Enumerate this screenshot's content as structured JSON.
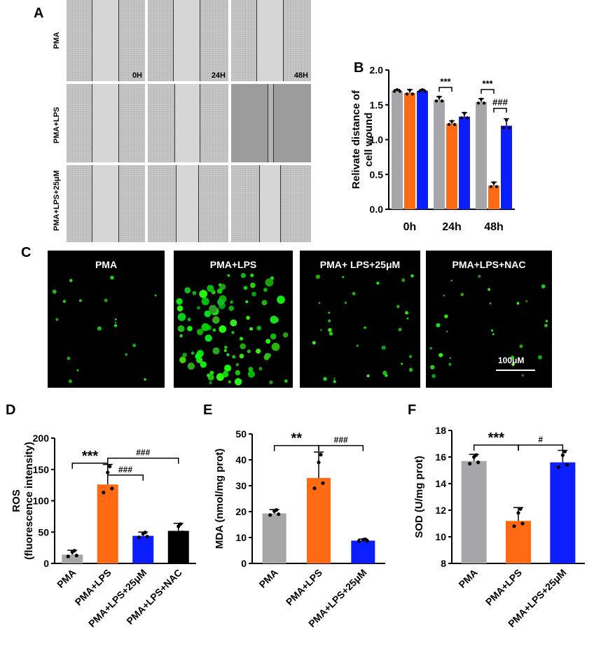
{
  "panels": {
    "A": "A",
    "B": "B",
    "C": "C",
    "D": "D",
    "E": "E",
    "F": "F"
  },
  "panel_a": {
    "rows": [
      "PMA",
      "PMA+LPS",
      "PMA+LPS+25μM"
    ],
    "times": [
      "0H",
      "24H",
      "48H"
    ]
  },
  "panel_c": {
    "labels": [
      "PMA",
      "PMA+LPS",
      "PMA+ LPS+25μM",
      "PMA+LPS+NAC"
    ],
    "scale": "100μM"
  },
  "chart_data": [
    {
      "id": "B",
      "type": "bar",
      "ylabel": "Relivate distance of cell wound",
      "ylim": [
        0,
        2.0
      ],
      "yticks": [
        "0.0",
        "0.5",
        "1.0",
        "1.5",
        "2.0"
      ],
      "categories": [
        "0h",
        "24h",
        "48h"
      ],
      "series": [
        {
          "values": [
            1.7,
            1.57,
            1.54
          ],
          "errors": [
            0.02,
            0.05,
            0.05
          ],
          "color": "#a6a6aa"
        },
        {
          "values": [
            1.67,
            1.23,
            0.34
          ],
          "errors": [
            0.05,
            0.04,
            0.05
          ],
          "color": "#ff6a13"
        },
        {
          "values": [
            1.7,
            1.33,
            1.2
          ],
          "errors": [
            0.02,
            0.06,
            0.1
          ],
          "color": "#0a1eff"
        }
      ],
      "annotations": [
        "***",
        "***",
        "###"
      ]
    },
    {
      "id": "D",
      "type": "bar",
      "ylabel": "ROS (fluorescence intensity)",
      "ylim": [
        0,
        200
      ],
      "yticks": [
        "0",
        "50",
        "100",
        "150",
        "200"
      ],
      "categories": [
        "PMA",
        "PMA+LPS",
        "PMA+LPS+25μM",
        "PMA+LPS+NAC"
      ],
      "values": [
        14,
        126,
        44,
        52
      ],
      "errors": [
        7,
        32,
        6,
        12
      ],
      "colors": [
        "#a6a6aa",
        "#ff6a13",
        "#0a1eff",
        "#000000"
      ],
      "annotations": [
        "***",
        "###",
        "###"
      ]
    },
    {
      "id": "E",
      "type": "bar",
      "ylabel": "MDA (nmol/mg prot)",
      "ylim": [
        0,
        50
      ],
      "yticks": [
        "0",
        "10",
        "20",
        "30",
        "40",
        "50"
      ],
      "categories": [
        "PMA",
        "PMA+LPS",
        "PMA+LPS+25μM"
      ],
      "values": [
        19.3,
        33.0,
        8.8
      ],
      "errors": [
        1.5,
        10.0,
        0.6
      ],
      "colors": [
        "#a6a6aa",
        "#ff6a13",
        "#0a1eff"
      ],
      "annotations": [
        "**",
        "###"
      ]
    },
    {
      "id": "F",
      "type": "bar",
      "ylabel": "SOD (U/mg prot)",
      "ylim": [
        8,
        18
      ],
      "yticks": [
        "8",
        "10",
        "12",
        "14",
        "16",
        "18"
      ],
      "categories": [
        "PMA",
        "PMA+LPS",
        "PMA+LPS+25μM"
      ],
      "values": [
        15.7,
        11.2,
        15.6
      ],
      "errors": [
        0.5,
        1.0,
        0.9
      ],
      "colors": [
        "#a6a6aa",
        "#ff6a13",
        "#0a1eff"
      ],
      "annotations": [
        "***",
        "#"
      ]
    }
  ]
}
